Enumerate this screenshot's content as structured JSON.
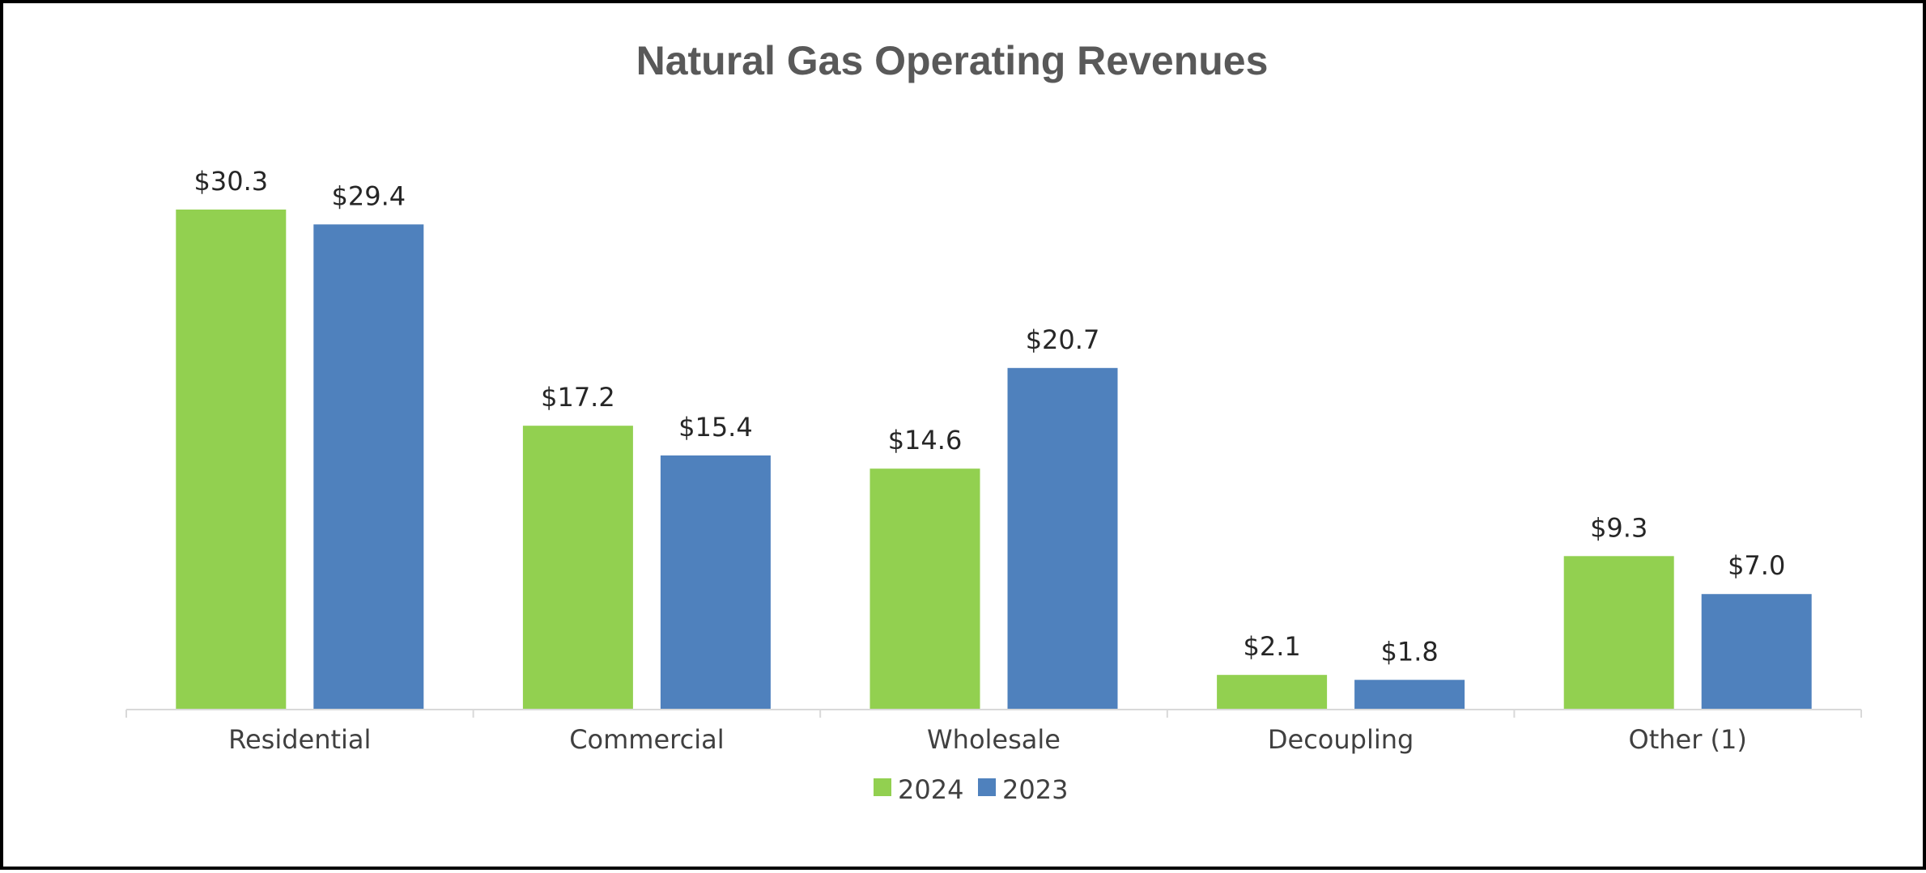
{
  "chart_data": {
    "type": "bar",
    "title": "Natural Gas Operating Revenues",
    "categories": [
      "Residential",
      "Commercial",
      "Wholesale",
      "Decoupling",
      "Other (1)"
    ],
    "series": [
      {
        "name": "2024",
        "color": "#92D050",
        "values": [
          30.3,
          17.2,
          14.6,
          2.1,
          9.3
        ],
        "labels": [
          "$30.3",
          "$17.2",
          "$14.6",
          "$2.1",
          "$9.3"
        ]
      },
      {
        "name": "2023",
        "color": "#4F81BD",
        "values": [
          29.4,
          15.4,
          20.7,
          1.8,
          7.0
        ],
        "labels": [
          "$29.4",
          "$15.4",
          "$20.7",
          "$1.8",
          "$7.0"
        ]
      }
    ],
    "xlabel": "",
    "ylabel": "",
    "ylim": [
      0,
      30.3
    ],
    "grid": false,
    "legend_position": "bottom"
  },
  "colors": {
    "axis": "#D9D9D9",
    "frame": "#000000"
  }
}
